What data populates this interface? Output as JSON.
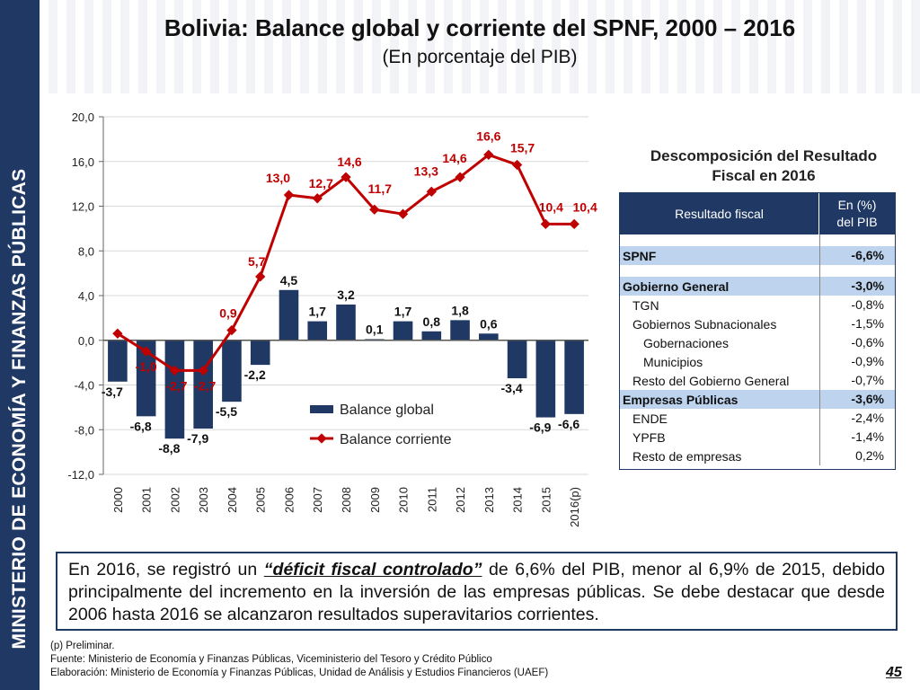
{
  "sidebar": {
    "text": "MINISTERIO DE ECONOMÍA Y FINANZAS PÚBLICAS"
  },
  "header": {
    "title": "Bolivia: Balance global y corriente del SPNF, 2000 – 2016",
    "subtitle": "(En porcentaje del PIB)"
  },
  "colors": {
    "bar": "#1f3864",
    "line": "#c00000",
    "accent": "#1f3864"
  },
  "chart_data": {
    "type": "bar",
    "categories": [
      "2000",
      "2001",
      "2002",
      "2003",
      "2004",
      "2005",
      "2006",
      "2007",
      "2008",
      "2009",
      "2010",
      "2011",
      "2012",
      "2013",
      "2014",
      "2015",
      "2016(p)"
    ],
    "series": [
      {
        "name": "Balance global",
        "type": "bar",
        "values": [
          -3.7,
          -6.8,
          -8.8,
          -7.9,
          -5.5,
          -2.2,
          4.5,
          1.7,
          3.2,
          0.1,
          1.7,
          0.8,
          1.8,
          0.6,
          -3.4,
          -6.9,
          -6.6
        ]
      },
      {
        "name": "Balance corriente",
        "type": "line",
        "values": [
          0.6,
          -1.0,
          -2.7,
          -2.7,
          0.9,
          5.7,
          13.0,
          12.7,
          14.6,
          11.7,
          11.3,
          13.3,
          14.6,
          16.6,
          15.7,
          10.4,
          10.4
        ]
      }
    ],
    "bar_labels": [
      "-3,7",
      "-6,8",
      "-8,8",
      "-7,9",
      "-5,5",
      "-2,2",
      "4,5",
      "1,7",
      "3,2",
      "0,1",
      "1,7",
      "0,8",
      "1,8",
      "0,6",
      "-3,4",
      "-6,9",
      "-6,6"
    ],
    "line_labels": [
      "",
      "-1,0",
      "-2,7",
      "-2,7",
      "0,9",
      "5,7",
      "13,0",
      "12,7",
      "14,6",
      "11,7",
      "",
      "13,3",
      "14,6",
      "16,6",
      "15,7",
      "10,4",
      "10,4"
    ],
    "yticks": [
      "20,0",
      "16,0",
      "12,0",
      "8,0",
      "4,0",
      "0,0",
      "-4,0",
      "-8,0",
      "-12,0"
    ],
    "ylim": [
      -12,
      20
    ],
    "legend_position": "inside-bottom",
    "grid": true
  },
  "table": {
    "heading_line1": "Descomposición del Resultado",
    "heading_line2": "Fiscal en 2016",
    "col1": "Resultado fiscal",
    "col2_line1": "En (%)",
    "col2_line2": "del PIB",
    "rows": [
      {
        "label": "SPNF",
        "value": "-6,6%"
      },
      {
        "label": "Gobierno General",
        "value": "-3,0%"
      },
      {
        "label": "TGN",
        "value": "-0,8%"
      },
      {
        "label": "Gobiernos Subnacionales",
        "value": "-1,5%"
      },
      {
        "label": "Gobernaciones",
        "value": "-0,6%"
      },
      {
        "label": "Municipios",
        "value": "-0,9%"
      },
      {
        "label": "Resto del Gobierno General",
        "value": "-0,7%"
      },
      {
        "label": "Empresas Públicas",
        "value": "-3,6%"
      },
      {
        "label": "ENDE",
        "value": "-2,4%"
      },
      {
        "label": "YPFB",
        "value": "-1,4%"
      },
      {
        "label": "Resto de empresas",
        "value": "0,2%"
      }
    ]
  },
  "note": {
    "part1": "En 2016, se registró un ",
    "emphasis": "“déficit fiscal controlado”",
    "part2": " de 6,6% del PIB, menor al 6,9% de 2015, debido principalmente del incremento en la inversión de las empresas públicas. Se debe destacar que desde 2006 hasta 2016 se alcanzaron resultados superavitarios corrientes."
  },
  "footnotes": {
    "line1": "(p) Preliminar.",
    "line2": "Fuente: Ministerio de Economía y Finanzas Públicas, Viceministerio del Tesoro y Crédito Público",
    "line3": "Elaboración: Ministerio de Economía y Finanzas Públicas, Unidad de Análisis y Estudios Financieros (UAEF)"
  },
  "page_number": "45"
}
